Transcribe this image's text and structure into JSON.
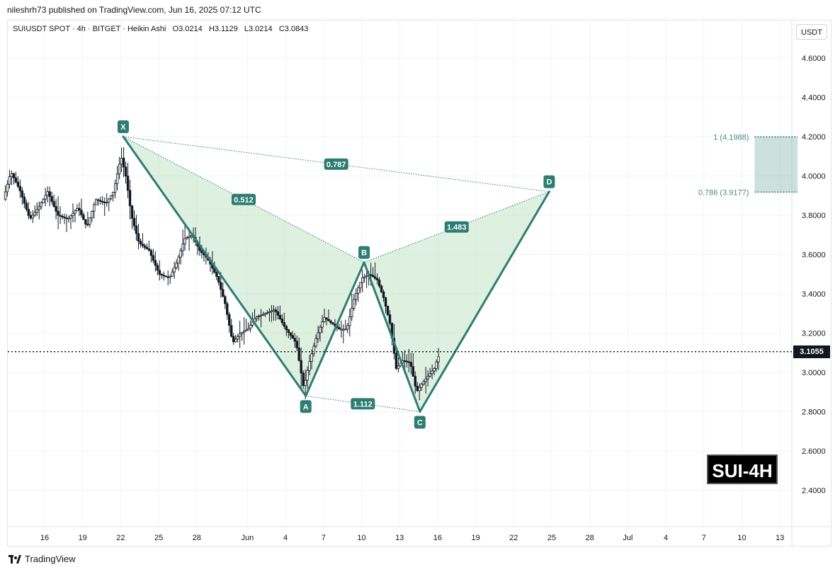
{
  "header": {
    "published": "nileshrh73 published on TradingView.com, Jun 16, 2025 07:12 UTC"
  },
  "legend": {
    "symbol": "SUIUSDT SPOT · 4h · BITGET · Heikin Ashi",
    "open": "O3.0214",
    "high": "H3.1129",
    "low": "L3.0214",
    "close": "C3.0843"
  },
  "currency": "USDT",
  "watermark": "SUI-4H",
  "footer": {
    "brand": "TradingView"
  },
  "colors": {
    "pattern": "#2e7d73",
    "fill": "#c8e6c9",
    "zone": "#7fb5a8",
    "candle": "#131722",
    "grid": "#f0f3fa"
  },
  "chart_data": {
    "type": "candlestick",
    "title": "",
    "ylim": [
      2.2,
      4.8
    ],
    "y_ticks": [
      "4.6000",
      "4.4000",
      "4.2000",
      "4.0000",
      "3.8000",
      "3.6000",
      "3.4000",
      "3.2000",
      "3.0000",
      "2.8000",
      "2.6000",
      "2.4000"
    ],
    "x_ticks": [
      {
        "label": "16",
        "day": 16
      },
      {
        "label": "19",
        "day": 19
      },
      {
        "label": "22",
        "day": 22
      },
      {
        "label": "25",
        "day": 25
      },
      {
        "label": "28",
        "day": 28
      },
      {
        "label": "Jun",
        "day": 32
      },
      {
        "label": "4",
        "day": 35
      },
      {
        "label": "7",
        "day": 38
      },
      {
        "label": "10",
        "day": 41
      },
      {
        "label": "13",
        "day": 44
      },
      {
        "label": "16",
        "day": 47
      },
      {
        "label": "19",
        "day": 50
      },
      {
        "label": "22",
        "day": 53
      },
      {
        "label": "25",
        "day": 56
      },
      {
        "label": "28",
        "day": 59
      },
      {
        "label": "Jul",
        "day": 62
      },
      {
        "label": "4",
        "day": 65
      },
      {
        "label": "7",
        "day": 68
      },
      {
        "label": "10",
        "day": 71
      },
      {
        "label": "13",
        "day": 74
      }
    ],
    "current_price": "3.1055",
    "current_value": 3.1055,
    "price_path": [
      [
        12.9,
        3.88
      ],
      [
        13.5,
        4.02
      ],
      [
        14.2,
        3.93
      ],
      [
        15.0,
        3.78
      ],
      [
        15.7,
        3.84
      ],
      [
        16.4,
        3.92
      ],
      [
        17.2,
        3.8
      ],
      [
        18.0,
        3.78
      ],
      [
        18.8,
        3.84
      ],
      [
        19.5,
        3.74
      ],
      [
        20.2,
        3.88
      ],
      [
        21.0,
        3.86
      ],
      [
        21.6,
        3.92
      ],
      [
        22.2,
        4.1
      ],
      [
        22.6,
        3.99
      ],
      [
        23.0,
        3.8
      ],
      [
        23.6,
        3.66
      ],
      [
        24.4,
        3.62
      ],
      [
        25.2,
        3.5
      ],
      [
        26.0,
        3.48
      ],
      [
        26.6,
        3.56
      ],
      [
        27.2,
        3.68
      ],
      [
        27.8,
        3.7
      ],
      [
        28.4,
        3.62
      ],
      [
        29.0,
        3.58
      ],
      [
        29.8,
        3.48
      ],
      [
        30.4,
        3.35
      ],
      [
        31.0,
        3.15
      ],
      [
        31.6,
        3.2
      ],
      [
        32.2,
        3.22
      ],
      [
        32.8,
        3.28
      ],
      [
        33.6,
        3.3
      ],
      [
        34.3,
        3.32
      ],
      [
        35.2,
        3.22
      ],
      [
        36.0,
        3.15
      ],
      [
        36.6,
        2.92
      ],
      [
        37.0,
        3.04
      ],
      [
        37.6,
        3.18
      ],
      [
        38.2,
        3.28
      ],
      [
        38.8,
        3.25
      ],
      [
        39.4,
        3.22
      ],
      [
        40.0,
        3.22
      ],
      [
        40.6,
        3.38
      ],
      [
        41.2,
        3.48
      ],
      [
        41.8,
        3.5
      ],
      [
        42.4,
        3.47
      ],
      [
        42.9,
        3.38
      ],
      [
        43.4,
        3.25
      ],
      [
        43.9,
        3.02
      ],
      [
        44.4,
        3.06
      ],
      [
        45.0,
        3.05
      ],
      [
        45.5,
        2.9
      ],
      [
        45.9,
        2.94
      ],
      [
        46.4,
        2.98
      ],
      [
        46.9,
        3.02
      ],
      [
        47.2,
        3.08
      ]
    ],
    "harmonic_pattern": {
      "points": [
        {
          "label": "X",
          "day": 22.2,
          "price": 4.2
        },
        {
          "label": "A",
          "day": 36.6,
          "price": 2.88
        },
        {
          "label": "B",
          "day": 41.2,
          "price": 3.56
        },
        {
          "label": "C",
          "day": 45.6,
          "price": 2.8
        },
        {
          "label": "D",
          "day": 55.8,
          "price": 3.92
        }
      ],
      "ratios": [
        {
          "label": "0.512",
          "from": "X",
          "to": "B"
        },
        {
          "label": "1.112",
          "from": "A",
          "to": "C"
        },
        {
          "label": "1.483",
          "from": "B",
          "to": "D"
        },
        {
          "label": "0.787",
          "from": "X",
          "to": "D"
        }
      ]
    },
    "fib_zone": {
      "levels": [
        {
          "label": "1 (4.1988)",
          "price": 4.1988
        },
        {
          "label": "0.786 (3.9177)",
          "price": 3.9177
        }
      ],
      "start_day": 72.0,
      "end_day": 75.4
    }
  }
}
